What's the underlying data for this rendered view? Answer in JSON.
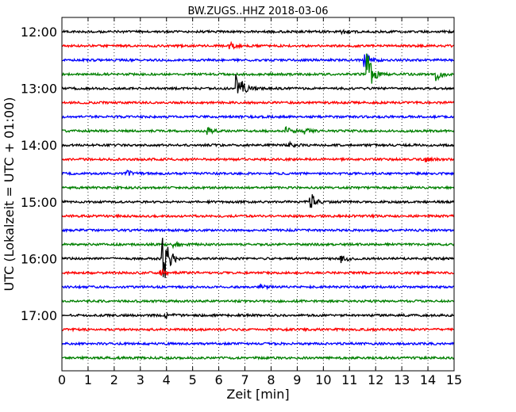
{
  "chart_data": {
    "type": "line",
    "title": "BW.ZUGS..HHZ 2018-03-06",
    "xlabel": "Zeit  [min]",
    "ylabel": "UTC (Lokalzeit = UTC + 01:00)",
    "xlim": [
      0,
      15
    ],
    "x_ticks": [
      "0",
      "1",
      "2",
      "3",
      "4",
      "5",
      "6",
      "7",
      "8",
      "9",
      "10",
      "11",
      "12",
      "13",
      "14",
      "15"
    ],
    "y_ticks": [
      "12:00",
      "13:00",
      "14:00",
      "15:00",
      "16:00",
      "17:00"
    ],
    "grid": "vertical dotted",
    "trace_colors": [
      "#000000",
      "#ff0000",
      "#0000ff",
      "#008000"
    ],
    "traces": [
      {
        "start": "12:00",
        "events": [
          {
            "x": 10.7,
            "amp": 0.3
          }
        ]
      },
      {
        "start": "12:15",
        "events": [
          {
            "x": 6.4,
            "amp": 0.6
          }
        ]
      },
      {
        "start": "12:30",
        "events": [
          {
            "x": 11.6,
            "amp": 1.0
          }
        ]
      },
      {
        "start": "12:45",
        "events": [
          {
            "x": 11.7,
            "amp": 3.0
          },
          {
            "x": 14.3,
            "amp": 1.0
          }
        ]
      },
      {
        "start": "13:00",
        "events": [
          {
            "x": 6.7,
            "amp": 2.8
          }
        ]
      },
      {
        "start": "13:15",
        "events": []
      },
      {
        "start": "13:30",
        "events": []
      },
      {
        "start": "13:45",
        "events": [
          {
            "x": 5.6,
            "amp": 0.4
          },
          {
            "x": 8.6,
            "amp": 0.4
          },
          {
            "x": 9.3,
            "amp": 0.4
          }
        ]
      },
      {
        "start": "14:00",
        "events": [
          {
            "x": 8.7,
            "amp": 0.3
          }
        ]
      },
      {
        "start": "14:15",
        "events": [
          {
            "x": 13.9,
            "amp": 0.3
          }
        ]
      },
      {
        "start": "14:30",
        "events": [
          {
            "x": 2.5,
            "amp": 0.4
          }
        ]
      },
      {
        "start": "14:45",
        "events": []
      },
      {
        "start": "15:00",
        "events": [
          {
            "x": 9.5,
            "amp": 1.5
          }
        ]
      },
      {
        "start": "15:15",
        "events": []
      },
      {
        "start": "15:30",
        "events": []
      },
      {
        "start": "15:45",
        "events": [
          {
            "x": 4.3,
            "amp": 0.4
          }
        ]
      },
      {
        "start": "16:00",
        "events": [
          {
            "x": 3.85,
            "amp": 5.0
          },
          {
            "x": 10.65,
            "amp": 0.7
          }
        ]
      },
      {
        "start": "16:15",
        "events": [
          {
            "x": 3.8,
            "amp": 0.3
          }
        ]
      },
      {
        "start": "16:30",
        "events": [
          {
            "x": 7.6,
            "amp": 0.3
          }
        ]
      },
      {
        "start": "16:45",
        "events": []
      },
      {
        "start": "17:00",
        "events": [
          {
            "x": 4.0,
            "amp": 0.3
          }
        ]
      },
      {
        "start": "17:15",
        "events": []
      },
      {
        "start": "17:30",
        "events": []
      },
      {
        "start": "17:45",
        "events": []
      }
    ]
  }
}
